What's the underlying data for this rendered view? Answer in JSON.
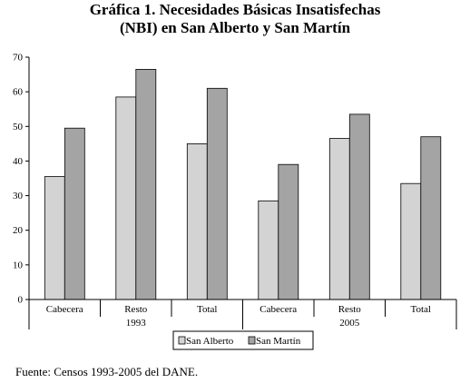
{
  "title_lines": [
    "Gráfica 1. Necesidades Básicas Insatisfechas",
    "(NBI) en San Alberto y San Martín"
  ],
  "source": "Fuente: Censos 1993-2005 del DANE.",
  "colors": {
    "series_1": "#d3d3d3",
    "series_2": "#a4a4a4",
    "outline": "#000000"
  },
  "chart_data": {
    "type": "bar",
    "title": "Gráfica 1. Necesidades Básicas Insatisfechas (NBI) en San Alberto y San Martín",
    "xlabel": "",
    "ylabel": "",
    "categories": [
      "Cabecera",
      "Resto",
      "Total",
      "Cabecera",
      "Resto",
      "Total"
    ],
    "groups": [
      {
        "label": "1993",
        "categories": [
          "Cabecera",
          "Resto",
          "Total"
        ]
      },
      {
        "label": "2005",
        "categories": [
          "Cabecera",
          "Resto",
          "Total"
        ]
      }
    ],
    "series": [
      {
        "name": "San Alberto",
        "values": [
          35.5,
          58.5,
          45,
          28.5,
          46.5,
          33.5
        ]
      },
      {
        "name": "San Martín",
        "values": [
          49.5,
          66.5,
          61,
          39,
          53.5,
          47
        ]
      }
    ],
    "ylim": [
      0,
      70
    ],
    "yticks": [
      "0",
      "10",
      "20",
      "30",
      "40",
      "50",
      "60",
      "70"
    ],
    "grid": false,
    "legend_position": "bottom"
  }
}
